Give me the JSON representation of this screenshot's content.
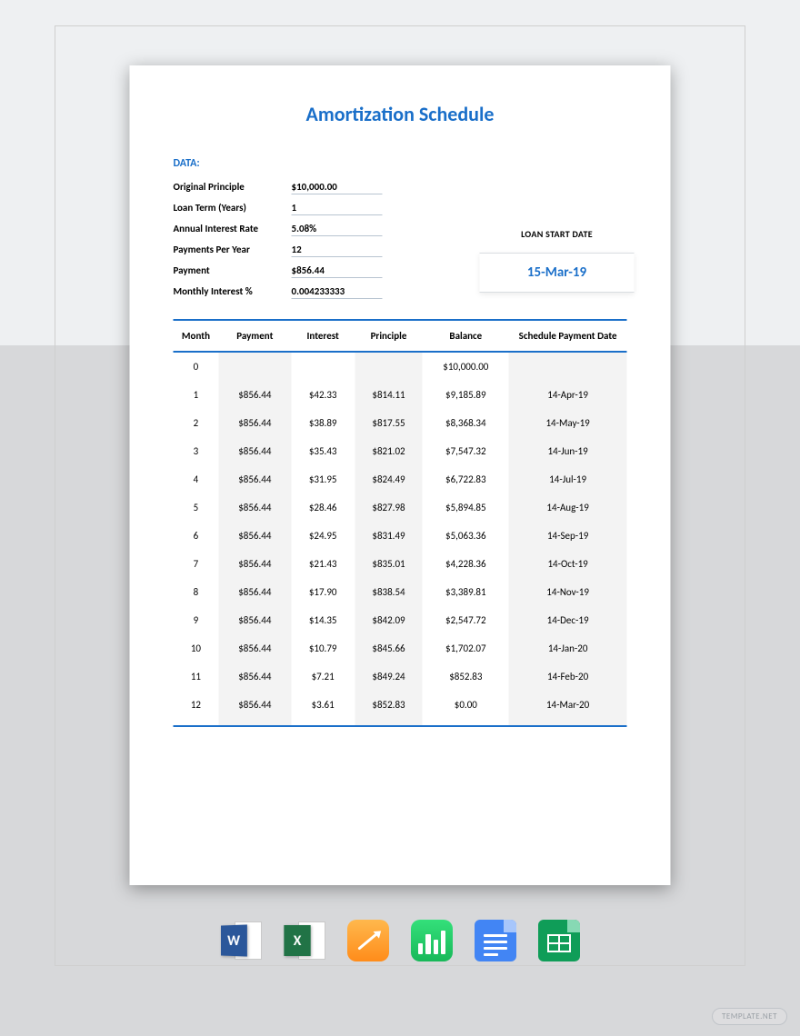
{
  "colors": {
    "accent": "#1a6fc9",
    "bg_top": "#eef0f2",
    "bg_bottom": "#d7d8da",
    "page_bg": "#ffffff",
    "stripe": "#f3f3f3",
    "underline": "#b8c4d0"
  },
  "title": "Amortization Schedule",
  "data_header": "DATA:",
  "loan_data": {
    "rows": [
      {
        "label": "Original Principle",
        "value": "$10,000.00"
      },
      {
        "label": "Loan Term (Years)",
        "value": "1"
      },
      {
        "label": "Annual Interest Rate",
        "value": "5.08%"
      },
      {
        "label": "Payments Per Year",
        "value": "12"
      },
      {
        "label": "Payment",
        "value": "$856.44"
      },
      {
        "label": "Monthly Interest %",
        "value": "0.004233333"
      }
    ]
  },
  "start_date": {
    "label": "LOAN START DATE",
    "value": "15-Mar-19"
  },
  "table": {
    "columns": [
      "Month",
      "Payment",
      "Interest",
      "Principle",
      "Balance",
      "Schedule Payment Date"
    ],
    "rows": [
      {
        "month": "0",
        "payment": "",
        "interest": "",
        "principle": "",
        "balance": "$10,000.00",
        "date": ""
      },
      {
        "month": "1",
        "payment": "$856.44",
        "interest": "$42.33",
        "principle": "$814.11",
        "balance": "$9,185.89",
        "date": "14-Apr-19"
      },
      {
        "month": "2",
        "payment": "$856.44",
        "interest": "$38.89",
        "principle": "$817.55",
        "balance": "$8,368.34",
        "date": "14-May-19"
      },
      {
        "month": "3",
        "payment": "$856.44",
        "interest": "$35.43",
        "principle": "$821.02",
        "balance": "$7,547.32",
        "date": "14-Jun-19"
      },
      {
        "month": "4",
        "payment": "$856.44",
        "interest": "$31.95",
        "principle": "$824.49",
        "balance": "$6,722.83",
        "date": "14-Jul-19"
      },
      {
        "month": "5",
        "payment": "$856.44",
        "interest": "$28.46",
        "principle": "$827.98",
        "balance": "$5,894.85",
        "date": "14-Aug-19"
      },
      {
        "month": "6",
        "payment": "$856.44",
        "interest": "$24.95",
        "principle": "$831.49",
        "balance": "$5,063.36",
        "date": "14-Sep-19"
      },
      {
        "month": "7",
        "payment": "$856.44",
        "interest": "$21.43",
        "principle": "$835.01",
        "balance": "$4,228.36",
        "date": "14-Oct-19"
      },
      {
        "month": "8",
        "payment": "$856.44",
        "interest": "$17.90",
        "principle": "$838.54",
        "balance": "$3,389.81",
        "date": "14-Nov-19"
      },
      {
        "month": "9",
        "payment": "$856.44",
        "interest": "$14.35",
        "principle": "$842.09",
        "balance": "$2,547.72",
        "date": "14-Dec-19"
      },
      {
        "month": "10",
        "payment": "$856.44",
        "interest": "$10.79",
        "principle": "$845.66",
        "balance": "$1,702.07",
        "date": "14-Jan-20"
      },
      {
        "month": "11",
        "payment": "$856.44",
        "interest": "$7.21",
        "principle": "$849.24",
        "balance": "$852.83",
        "date": "14-Feb-20"
      },
      {
        "month": "12",
        "payment": "$856.44",
        "interest": "$3.61",
        "principle": "$852.83",
        "balance": "$0.00",
        "date": "14-Mar-20"
      }
    ]
  },
  "icons": [
    "word",
    "excel",
    "pages",
    "numbers",
    "gdocs",
    "gsheets"
  ],
  "watermark": "TEMPLATE.NET"
}
